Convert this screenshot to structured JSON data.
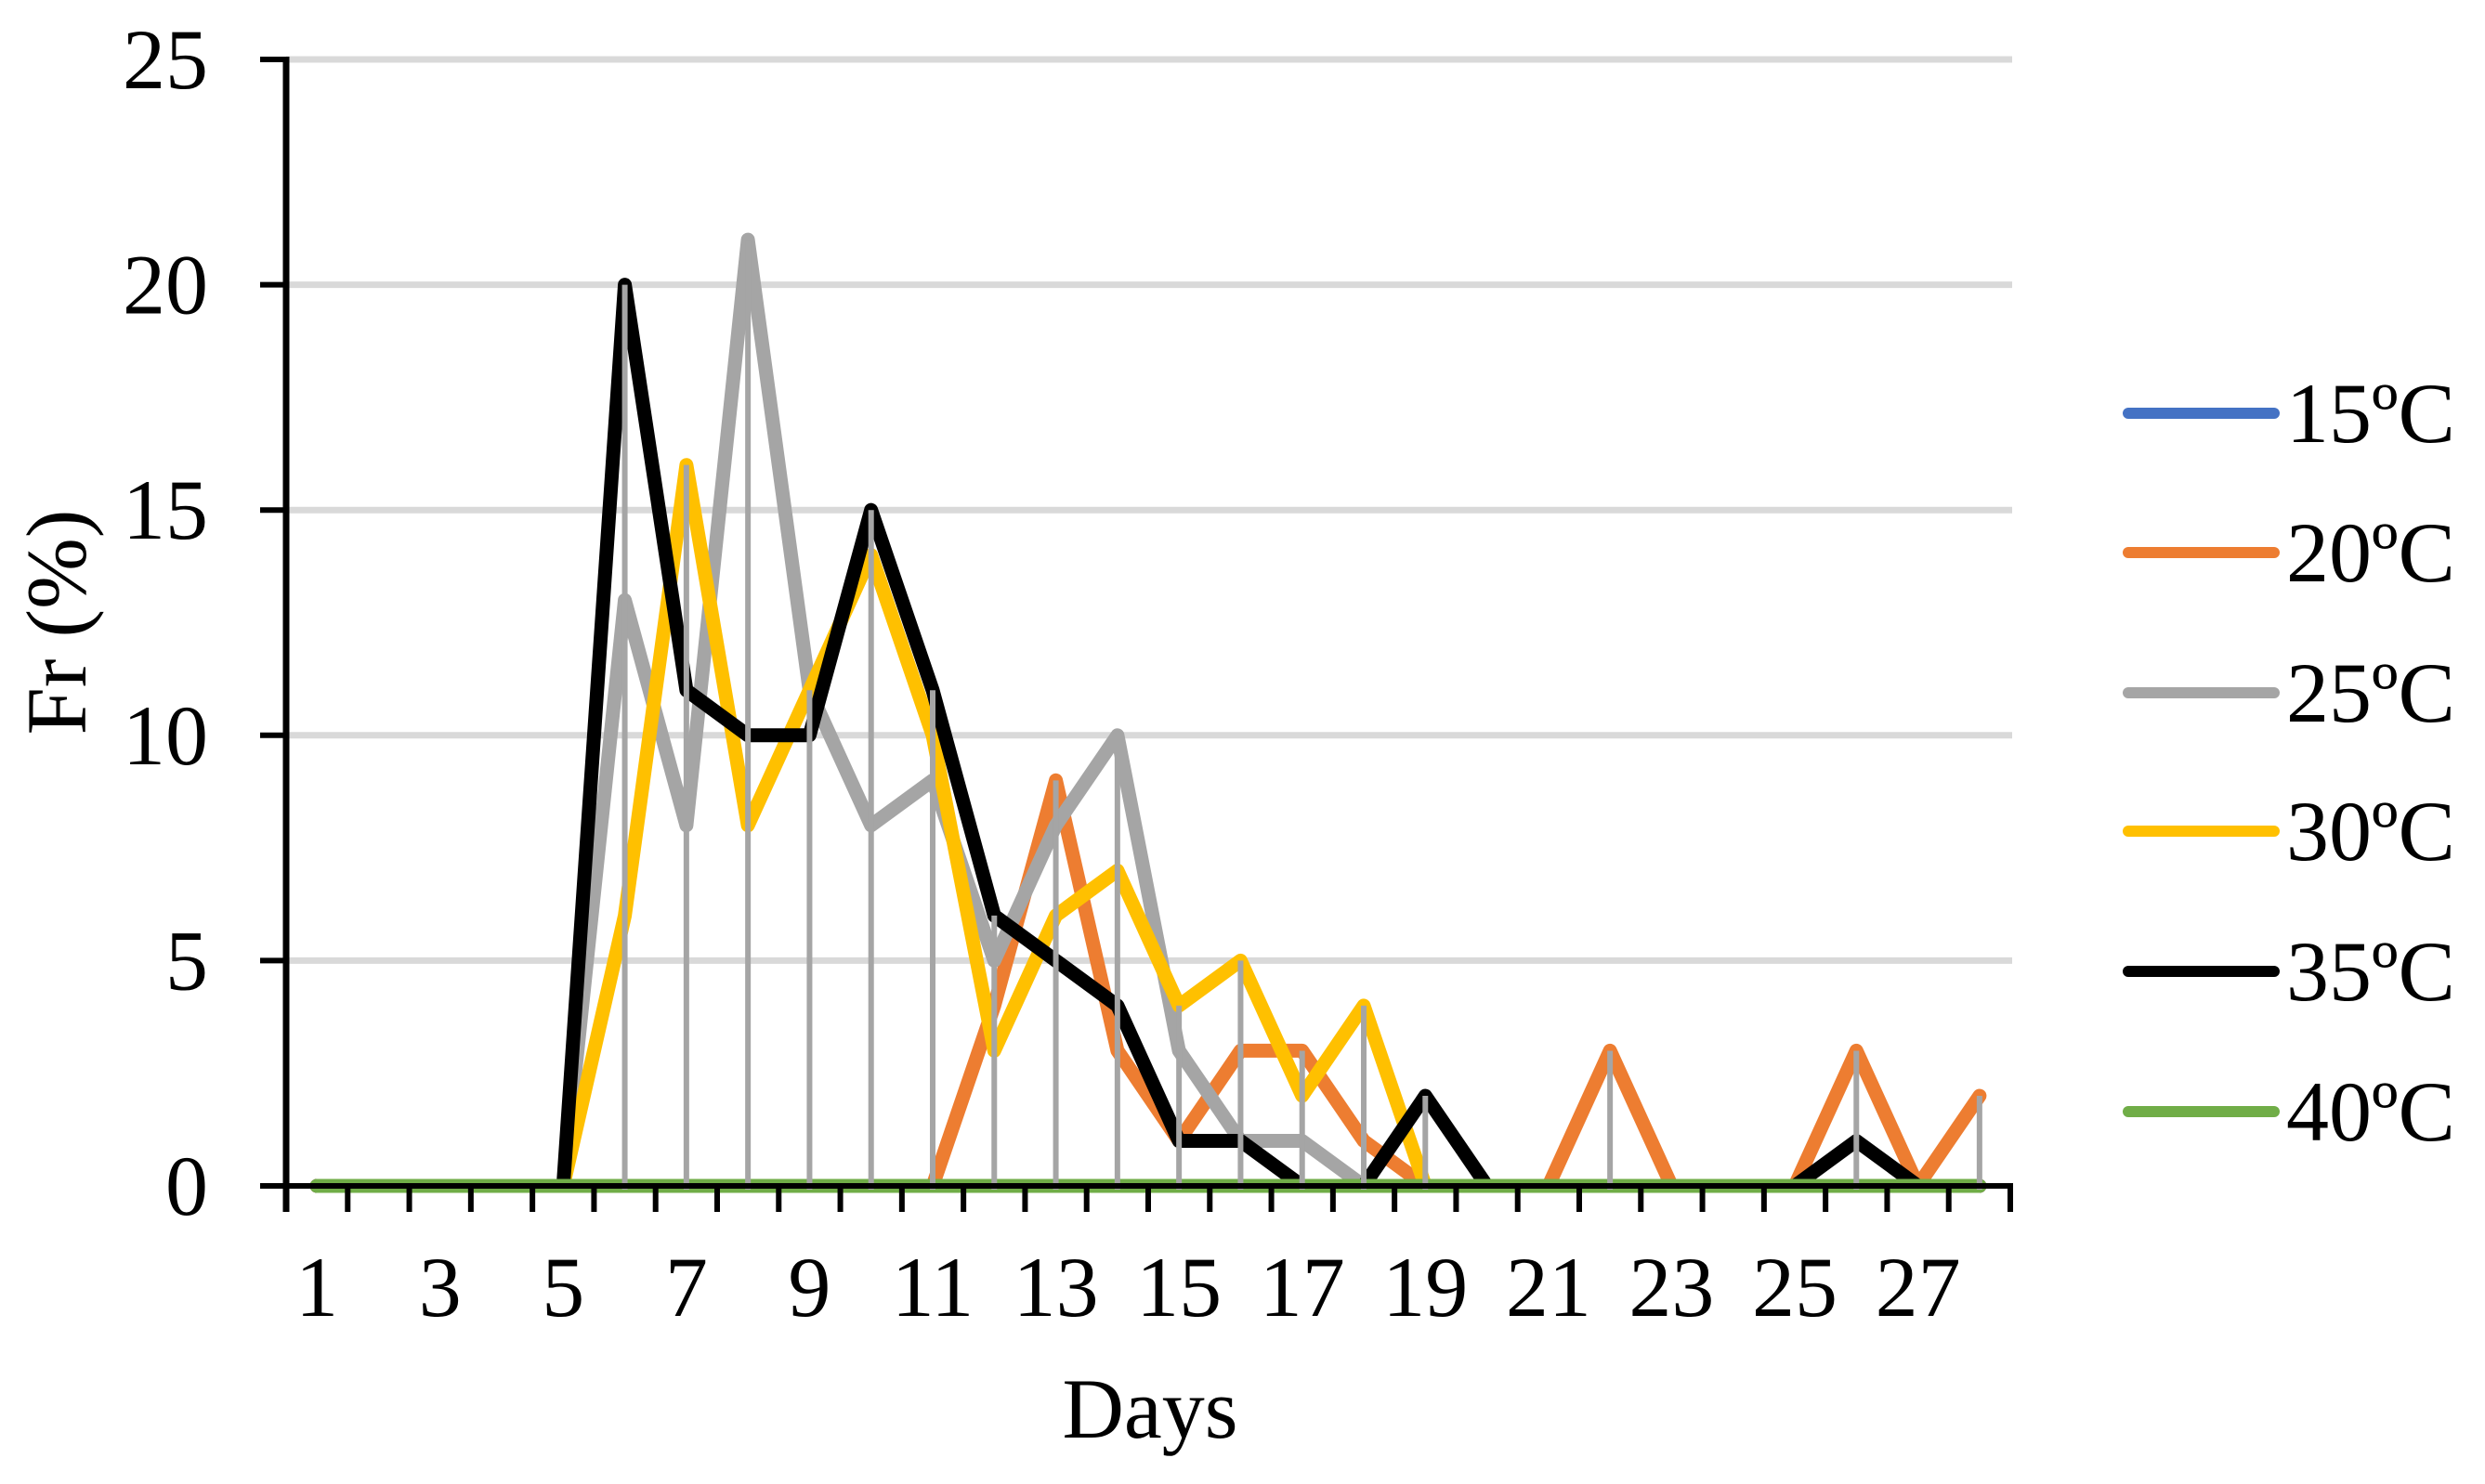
{
  "chart_data": {
    "type": "line",
    "title": "",
    "xlabel": "Days",
    "ylabel": "Fr (%)",
    "ylim": [
      0,
      25
    ],
    "yticks": [
      0,
      5,
      10,
      15,
      20,
      25
    ],
    "x": [
      1,
      2,
      3,
      4,
      5,
      6,
      7,
      8,
      9,
      10,
      11,
      12,
      13,
      14,
      15,
      16,
      17,
      18,
      19,
      20,
      21,
      22,
      23,
      24,
      25,
      26,
      27,
      28
    ],
    "xtick_labels": [
      "1",
      "3",
      "5",
      "7",
      "9",
      "11",
      "13",
      "15",
      "17",
      "19",
      "21",
      "23",
      "25",
      "27"
    ],
    "grid": {
      "horizontal": true,
      "vertical": false,
      "color": "#D9D9D9"
    },
    "drop_lines": {
      "enabled": true,
      "color": "#A5A5A5"
    },
    "legend_position": "right",
    "series": [
      {
        "name": "15ºC",
        "color": "#4472C4",
        "values": [
          0,
          0,
          0,
          0,
          0,
          0,
          0,
          0,
          0,
          0,
          0,
          0,
          0,
          0,
          0,
          0,
          0,
          0,
          0,
          0,
          0,
          0,
          0,
          0,
          0,
          0,
          0,
          0
        ]
      },
      {
        "name": "20ºC",
        "color": "#ED7D31",
        "values": [
          0,
          0,
          0,
          0,
          0,
          0,
          0,
          0,
          0,
          0,
          0,
          4,
          9,
          3,
          1,
          3,
          3,
          1,
          0,
          0,
          0,
          3,
          0,
          0,
          0,
          3,
          0,
          2
        ]
      },
      {
        "name": "25ºC",
        "color": "#A5A5A5",
        "values": [
          0,
          0,
          0,
          0,
          0,
          13,
          8,
          21,
          11,
          8,
          9,
          5,
          8,
          10,
          3,
          1,
          1,
          0,
          0,
          0,
          0,
          0,
          0,
          0,
          0,
          0,
          0,
          0
        ]
      },
      {
        "name": "30ºC",
        "color": "#FFC000",
        "values": [
          0,
          0,
          0,
          0,
          0,
          6,
          16,
          8,
          11,
          14,
          10,
          3,
          6,
          7,
          4,
          5,
          2,
          4,
          0,
          0,
          0,
          0,
          0,
          0,
          0,
          0,
          0,
          0
        ]
      },
      {
        "name": "35ºC",
        "color": "#000000",
        "values": [
          0,
          0,
          0,
          0,
          0,
          20,
          11,
          10,
          10,
          15,
          11,
          6,
          5,
          4,
          1,
          1,
          0,
          0,
          2,
          0,
          0,
          0,
          0,
          0,
          0,
          1,
          0,
          0
        ]
      },
      {
        "name": "40ºC",
        "color": "#70AD47",
        "values": [
          0,
          0,
          0,
          0,
          0,
          0,
          0,
          0,
          0,
          0,
          0,
          0,
          0,
          0,
          0,
          0,
          0,
          0,
          0,
          0,
          0,
          0,
          0,
          0,
          0,
          0,
          0,
          0
        ]
      }
    ]
  }
}
